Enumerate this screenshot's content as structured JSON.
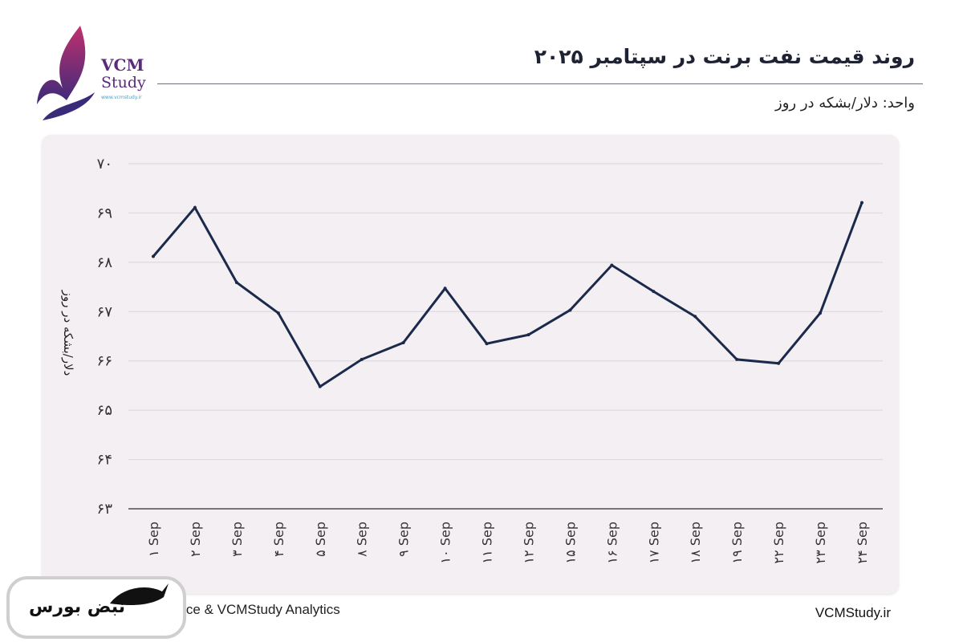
{
  "header": {
    "title": "روند قیمت نفت برنت در سپتامبر ۲۰۲۵",
    "unit": "واحد: دلار/بشکه در روز"
  },
  "logo": {
    "name_line1": "VCM",
    "name_line2": "Study",
    "url": "www.vcmstudy.ir"
  },
  "footer": {
    "source": "Source & VCMStudy Analytics",
    "site": "VCMStudy.ir",
    "badge": "نبض بورس"
  },
  "colors": {
    "line": "#1b2a4a",
    "card": "#f3eff3",
    "grid": "#d9d6dc",
    "brand": "#5a2b7a"
  },
  "chart_data": {
    "type": "line",
    "title": "روند قیمت نفت برنت در سپتامبر ۲۰۲۵",
    "xlabel": "",
    "ylabel": "دلار/بشکه در روز",
    "ylim": [
      63,
      70
    ],
    "yticks": [
      63,
      64,
      65,
      66,
      67,
      68,
      69,
      70
    ],
    "ytick_labels": [
      "۶۳",
      "۶۴",
      "۶۵",
      "۶۶",
      "۶۷",
      "۶۸",
      "۶۹",
      "۷۰"
    ],
    "grid": true,
    "categories": [
      "۱ Sep",
      "۲ Sep",
      "۳ Sep",
      "۴ Sep",
      "۵ Sep",
      "۸ Sep",
      "۹ Sep",
      "۱۰ Sep",
      "۱۱ Sep",
      "۱۲ Sep",
      "۱۵ Sep",
      "۱۶ Sep",
      "۱۷ Sep",
      "۱۸ Sep",
      "۱۹ Sep",
      "۲۲ Sep",
      "۲۳ Sep",
      "۲۴ Sep"
    ],
    "series": [
      {
        "name": "Brent",
        "values": [
          68.12,
          69.11,
          67.59,
          66.97,
          65.48,
          66.03,
          66.37,
          67.47,
          66.35,
          66.53,
          67.03,
          67.94,
          67.41,
          66.9,
          66.03,
          65.95,
          66.97,
          69.21
        ]
      }
    ]
  }
}
